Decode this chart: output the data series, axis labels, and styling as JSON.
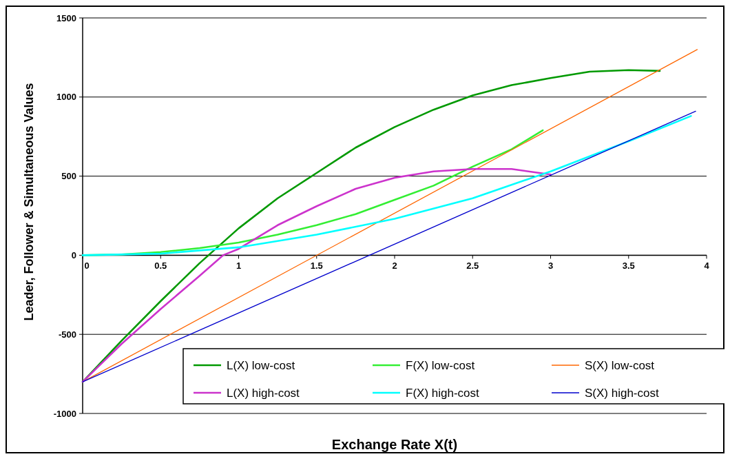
{
  "chart_data": {
    "type": "line",
    "xlabel": "Exchange Rate X(t)",
    "ylabel": "Leader, Follower & Simultaneous Values",
    "xlim": [
      0,
      4
    ],
    "ylim": [
      -1000,
      1500
    ],
    "xticks": [
      0,
      0.5,
      1,
      1.5,
      2,
      2.5,
      3,
      3.5,
      4
    ],
    "yticks": [
      -1000,
      -500,
      0,
      500,
      1000,
      1500
    ],
    "grid": "y",
    "legend": "bottom",
    "marker": "none",
    "series": [
      {
        "name": "L(X) low-cost",
        "color": "#009900",
        "x": [
          0,
          0.25,
          0.5,
          0.75,
          1,
          1.25,
          1.5,
          1.75,
          2,
          2.25,
          2.5,
          2.75,
          3,
          3.25,
          3.5,
          3.7
        ],
        "values": [
          -800,
          -540,
          -290,
          -50,
          170,
          360,
          520,
          680,
          810,
          920,
          1010,
          1075,
          1120,
          1160,
          1170,
          1165
        ]
      },
      {
        "name": "F(X) low-cost",
        "color": "#33ee33",
        "x": [
          0,
          0.25,
          0.5,
          0.75,
          1,
          1.25,
          1.5,
          1.75,
          2,
          2.25,
          2.5,
          2.75,
          2.95
        ],
        "values": [
          0,
          5,
          20,
          45,
          80,
          130,
          190,
          260,
          350,
          440,
          560,
          670,
          790
        ]
      },
      {
        "name": "S(X) low-cost",
        "color": "#ff6600",
        "x": [
          0,
          3.94
        ],
        "values": [
          -800,
          1300
        ]
      },
      {
        "name": "L(X) high-cost",
        "color": "#cc33cc",
        "x": [
          0,
          0.25,
          0.5,
          0.75,
          0.9,
          1,
          1.25,
          1.5,
          1.75,
          2,
          2.25,
          2.5,
          2.75,
          3
        ],
        "values": [
          -800,
          -560,
          -340,
          -130,
          0,
          40,
          190,
          310,
          420,
          490,
          530,
          545,
          545,
          510
        ]
      },
      {
        "name": "F(X) high-cost",
        "color": "#00ffff",
        "x": [
          0,
          0.5,
          1,
          1.5,
          2,
          2.5,
          3,
          3.5,
          3.9
        ],
        "values": [
          0,
          10,
          50,
          130,
          230,
          360,
          530,
          720,
          880
        ]
      },
      {
        "name": "S(X) high-cost",
        "color": "#0000cc",
        "x": [
          0,
          3.93
        ],
        "values": [
          -800,
          910
        ]
      }
    ]
  }
}
